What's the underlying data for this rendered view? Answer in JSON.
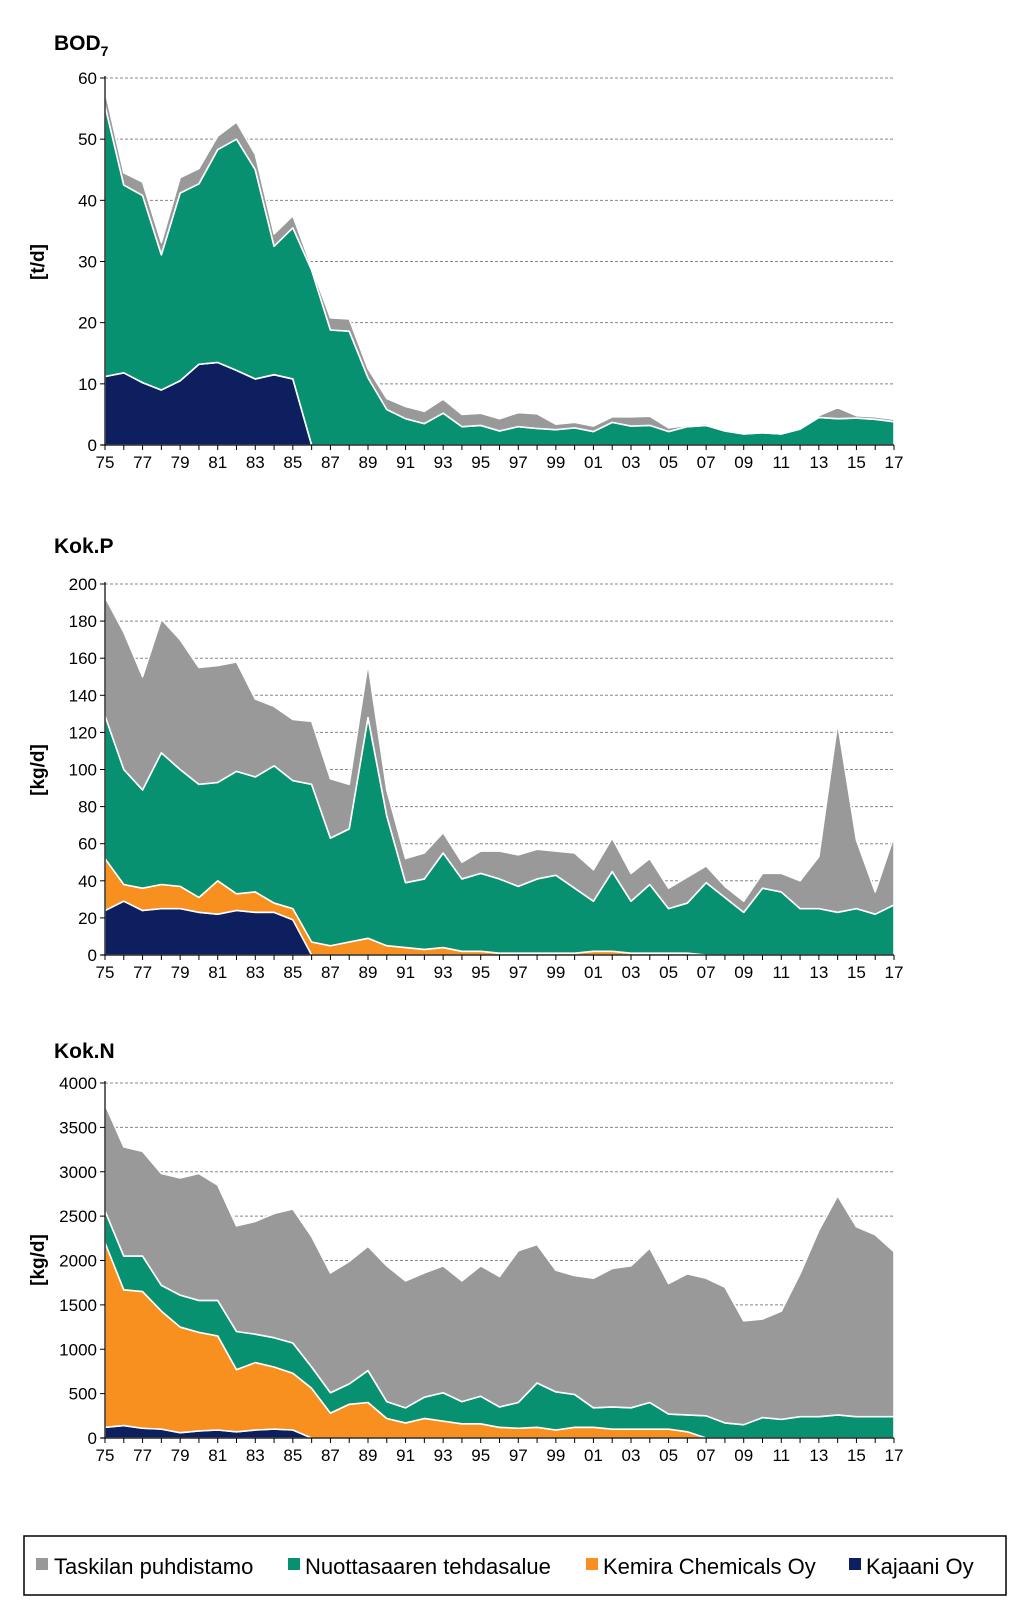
{
  "legend": [
    {
      "name": "Taskilan puhdistamo",
      "color": "#999999"
    },
    {
      "name": "Nuottasaaren tehdasalue",
      "color": "#079170"
    },
    {
      "name": "Kemira Chemicals Oy",
      "color": "#F7901E"
    },
    {
      "name": "Kajaani Oy",
      "color": "#0D1F5F"
    }
  ],
  "chart_data": [
    {
      "type": "area",
      "stacked": true,
      "title": "BOD",
      "title_subscript": "7",
      "ylabel": "[t/d]",
      "ylim": [
        0,
        60
      ],
      "yticks": [
        0,
        10,
        20,
        30,
        40,
        50,
        60
      ],
      "xticks": [
        "75",
        "77",
        "79",
        "81",
        "83",
        "85",
        "87",
        "89",
        "91",
        "93",
        "95",
        "97",
        "99",
        "01",
        "03",
        "05",
        "07",
        "09",
        "11",
        "13",
        "15",
        "17"
      ],
      "x": [
        75,
        76,
        77,
        78,
        79,
        80,
        81,
        82,
        83,
        84,
        85,
        86,
        87,
        88,
        89,
        90,
        91,
        92,
        93,
        94,
        95,
        96,
        97,
        98,
        99,
        100,
        101,
        102,
        103,
        104,
        105,
        106,
        107,
        108,
        109,
        110,
        111,
        112,
        113,
        114,
        115,
        116,
        117
      ],
      "series": [
        {
          "name": "Kajaani Oy",
          "color": "#0D1F5F",
          "values": [
            11.2,
            11.8,
            10.2,
            9.0,
            10.5,
            13.2,
            13.5,
            12.2,
            10.8,
            11.5,
            10.8,
            0,
            0,
            0,
            0,
            0,
            0,
            0,
            0,
            0,
            0,
            0,
            0,
            0,
            0,
            0,
            0,
            0,
            0,
            0,
            0,
            0,
            0,
            0,
            0,
            0,
            0,
            0,
            0,
            0,
            0,
            0,
            0
          ]
        },
        {
          "name": "Kemira Chemicals Oy",
          "color": "#F7901E",
          "values": [
            0,
            0,
            0,
            0,
            0,
            0,
            0,
            0,
            0,
            0,
            0,
            0,
            0,
            0,
            0,
            0,
            0,
            0,
            0,
            0,
            0,
            0,
            0,
            0,
            0,
            0,
            0,
            0,
            0,
            0,
            0,
            0,
            0,
            0,
            0,
            0,
            0,
            0,
            0,
            0,
            0,
            0,
            0
          ]
        },
        {
          "name": "Nuottasaaren tehdasalue",
          "color": "#079170",
          "values": [
            44.3,
            30.7,
            30.6,
            22.1,
            30.7,
            29.5,
            34.8,
            37.8,
            34.2,
            21.0,
            24.7,
            28.6,
            18.8,
            18.6,
            11.0,
            5.8,
            4.3,
            3.5,
            5.2,
            3.0,
            3.2,
            2.3,
            3.0,
            2.7,
            2.5,
            2.8,
            2.2,
            3.7,
            3.1,
            3.2,
            2.2,
            3.0,
            3.2,
            2.3,
            1.8,
            2.0,
            1.8,
            2.6,
            4.5,
            4.3,
            4.4,
            4.2,
            3.8
          ]
        },
        {
          "name": "Taskilan puhdistamo",
          "color": "#999999",
          "values": [
            2.5,
            2.0,
            2.2,
            2.0,
            2.5,
            2.5,
            2.2,
            2.8,
            2.5,
            2.0,
            2.0,
            0.5,
            2.0,
            2.0,
            1.5,
            1.8,
            2.0,
            2.0,
            2.3,
            2.0,
            2.0,
            2.0,
            2.3,
            2.4,
            0.9,
            0.9,
            0.9,
            0.9,
            1.5,
            1.5,
            0.6,
            0.2,
            0.3,
            0.2,
            0.2,
            0.2,
            0.2,
            0.2,
            0.3,
            1.8,
            0.4,
            0.4,
            0.4
          ]
        }
      ]
    },
    {
      "type": "area",
      "stacked": true,
      "title": "Kok.P",
      "title_subscript": "",
      "ylabel": "[kg/d]",
      "ylim": [
        0,
        200
      ],
      "yticks": [
        0,
        20,
        40,
        60,
        80,
        100,
        120,
        140,
        160,
        180,
        200
      ],
      "xticks": [
        "75",
        "77",
        "79",
        "81",
        "83",
        "85",
        "87",
        "89",
        "91",
        "93",
        "95",
        "97",
        "99",
        "01",
        "03",
        "05",
        "07",
        "09",
        "11",
        "13",
        "15",
        "17"
      ],
      "x": [
        75,
        76,
        77,
        78,
        79,
        80,
        81,
        82,
        83,
        84,
        85,
        86,
        87,
        88,
        89,
        90,
        91,
        92,
        93,
        94,
        95,
        96,
        97,
        98,
        99,
        100,
        101,
        102,
        103,
        104,
        105,
        106,
        107,
        108,
        109,
        110,
        111,
        112,
        113,
        114,
        115,
        116,
        117
      ],
      "series": [
        {
          "name": "Kajaani Oy",
          "color": "#0D1F5F",
          "values": [
            24,
            29,
            24,
            25,
            25,
            23,
            22,
            24,
            23,
            23,
            19,
            0,
            0,
            0,
            0,
            0,
            0,
            0,
            0,
            0,
            0,
            0,
            0,
            0,
            0,
            0,
            0,
            0,
            0,
            0,
            0,
            0,
            0,
            0,
            0,
            0,
            0,
            0,
            0,
            0,
            0,
            0,
            0
          ]
        },
        {
          "name": "Kemira Chemicals Oy",
          "color": "#F7901E",
          "values": [
            28,
            9,
            12,
            13,
            12,
            8,
            18,
            9,
            11,
            5,
            6,
            7,
            5,
            7,
            9,
            5,
            4,
            3,
            4,
            2,
            2,
            1,
            1,
            1,
            1,
            1,
            2,
            2,
            1,
            1,
            1,
            1,
            0,
            0,
            0,
            0,
            0,
            0,
            0,
            0,
            0,
            0,
            0
          ]
        },
        {
          "name": "Nuottasaaren tehdasalue",
          "color": "#079170",
          "values": [
            77,
            62,
            53,
            71,
            63,
            61,
            53,
            66,
            62,
            74,
            69,
            85,
            58,
            61,
            119,
            70,
            35,
            38,
            51,
            39,
            42,
            40,
            36,
            40,
            42,
            35,
            27,
            43,
            28,
            37,
            24,
            27,
            39,
            31,
            23,
            36,
            34,
            25,
            25,
            23,
            25,
            22,
            27
          ]
        },
        {
          "name": "Taskilan puhdistamo",
          "color": "#999999",
          "values": [
            64,
            74,
            61,
            72,
            70,
            63,
            63,
            59,
            42,
            32,
            33,
            34,
            32,
            24,
            29,
            14,
            13,
            14,
            11,
            9,
            12,
            15,
            17,
            16,
            13,
            19,
            17,
            18,
            15,
            14,
            11,
            14,
            9,
            6,
            6,
            8,
            10,
            15,
            28,
            102,
            37,
            12,
            37
          ]
        }
      ]
    },
    {
      "type": "area",
      "stacked": true,
      "title": "Kok.N",
      "title_subscript": "",
      "ylabel": "[kg/d]",
      "ylim": [
        0,
        4000
      ],
      "yticks": [
        0,
        500,
        1000,
        1500,
        2000,
        2500,
        3000,
        3500,
        4000
      ],
      "xticks": [
        "75",
        "77",
        "79",
        "81",
        "83",
        "85",
        "87",
        "89",
        "91",
        "93",
        "95",
        "97",
        "99",
        "01",
        "03",
        "05",
        "07",
        "09",
        "11",
        "13",
        "15",
        "17"
      ],
      "x": [
        75,
        76,
        77,
        78,
        79,
        80,
        81,
        82,
        83,
        84,
        85,
        86,
        87,
        88,
        89,
        90,
        91,
        92,
        93,
        94,
        95,
        96,
        97,
        98,
        99,
        100,
        101,
        102,
        103,
        104,
        105,
        106,
        107,
        108,
        109,
        110,
        111,
        112,
        113,
        114,
        115,
        116,
        117
      ],
      "series": [
        {
          "name": "Kajaani Oy",
          "color": "#0D1F5F",
          "values": [
            120,
            140,
            110,
            100,
            60,
            80,
            90,
            70,
            90,
            100,
            90,
            0,
            0,
            0,
            0,
            0,
            0,
            0,
            0,
            0,
            0,
            0,
            0,
            0,
            0,
            0,
            0,
            0,
            0,
            0,
            0,
            0,
            0,
            0,
            0,
            0,
            0,
            0,
            0,
            0,
            0,
            0,
            0
          ]
        },
        {
          "name": "Kemira Chemicals Oy",
          "color": "#F7901E",
          "values": [
            2080,
            1530,
            1540,
            1330,
            1190,
            1110,
            1060,
            700,
            760,
            700,
            640,
            560,
            280,
            380,
            400,
            220,
            170,
            220,
            190,
            160,
            160,
            120,
            110,
            120,
            90,
            120,
            120,
            100,
            100,
            100,
            100,
            70,
            0,
            0,
            0,
            0,
            0,
            0,
            0,
            0,
            0,
            0,
            0
          ]
        },
        {
          "name": "Nuottasaaren tehdasalue",
          "color": "#079170",
          "values": [
            360,
            380,
            400,
            290,
            360,
            360,
            400,
            430,
            320,
            330,
            340,
            240,
            230,
            230,
            360,
            190,
            170,
            240,
            320,
            250,
            310,
            230,
            290,
            500,
            430,
            370,
            220,
            250,
            240,
            300,
            170,
            190,
            250,
            170,
            150,
            230,
            210,
            240,
            240,
            260,
            240,
            240,
            240
          ]
        },
        {
          "name": "Taskilan puhdistamo",
          "color": "#999999",
          "values": [
            1200,
            1230,
            1180,
            1260,
            1320,
            1430,
            1300,
            1190,
            1270,
            1400,
            1510,
            1470,
            1350,
            1380,
            1400,
            1530,
            1430,
            1400,
            1430,
            1360,
            1470,
            1470,
            1710,
            1560,
            1370,
            1340,
            1460,
            1560,
            1600,
            1740,
            1470,
            1590,
            1550,
            1530,
            1170,
            1110,
            1220,
            1610,
            2100,
            2470,
            2140,
            2050,
            1860
          ]
        }
      ]
    }
  ]
}
